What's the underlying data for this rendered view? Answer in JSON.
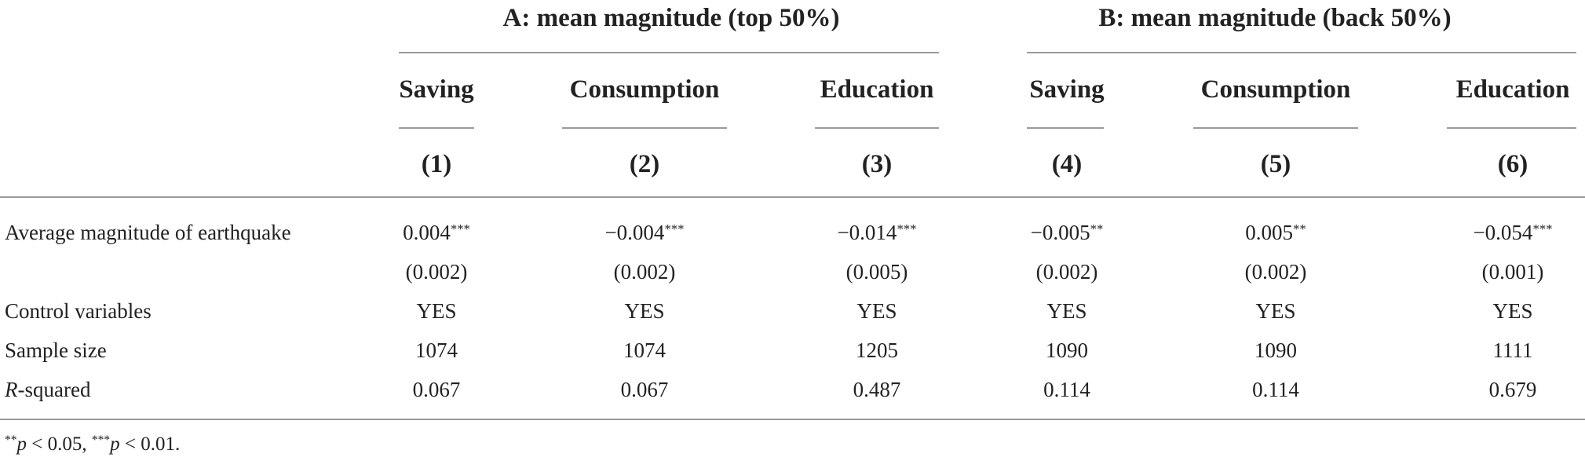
{
  "panel_a_title": "A: mean magnitude (top 50%)",
  "panel_b_title": "B: mean magnitude (back 50%)",
  "columns": [
    {
      "name": "Saving",
      "number": "(1)"
    },
    {
      "name": "Consumption",
      "number": "(2)"
    },
    {
      "name": "Education",
      "number": "(3)"
    },
    {
      "name": "Saving",
      "number": "(4)"
    },
    {
      "name": "Consumption",
      "number": "(5)"
    },
    {
      "name": "Education",
      "number": "(6)"
    }
  ],
  "rows": {
    "magnitude": {
      "label": "Average magnitude of earthquake",
      "coefficients": [
        "0.004",
        "−0.004",
        "−0.014",
        "−0.005",
        "0.005",
        "−0.054"
      ],
      "stars": [
        "***",
        "***",
        "***",
        "**",
        "**",
        "***"
      ],
      "std_errors": [
        "(0.002)",
        "(0.002)",
        "(0.005)",
        "(0.002)",
        "(0.002)",
        "(0.001)"
      ]
    },
    "controls": {
      "label": "Control variables",
      "values": [
        "YES",
        "YES",
        "YES",
        "YES",
        "YES",
        "YES"
      ]
    },
    "sample": {
      "label": "Sample size",
      "values": [
        "1074",
        "1074",
        "1205",
        "1090",
        "1090",
        "1111"
      ]
    },
    "rsquared": {
      "label_italic": "R",
      "label_rest": "-squared",
      "values": [
        "0.067",
        "0.067",
        "0.487",
        "0.114",
        "0.114",
        "0.679"
      ]
    }
  },
  "footnote": {
    "stars_1": "**",
    "p_1": "p",
    "cond_1": " < 0.05, ",
    "stars_2": "***",
    "p_2": "p",
    "cond_2": " < 0.01."
  }
}
